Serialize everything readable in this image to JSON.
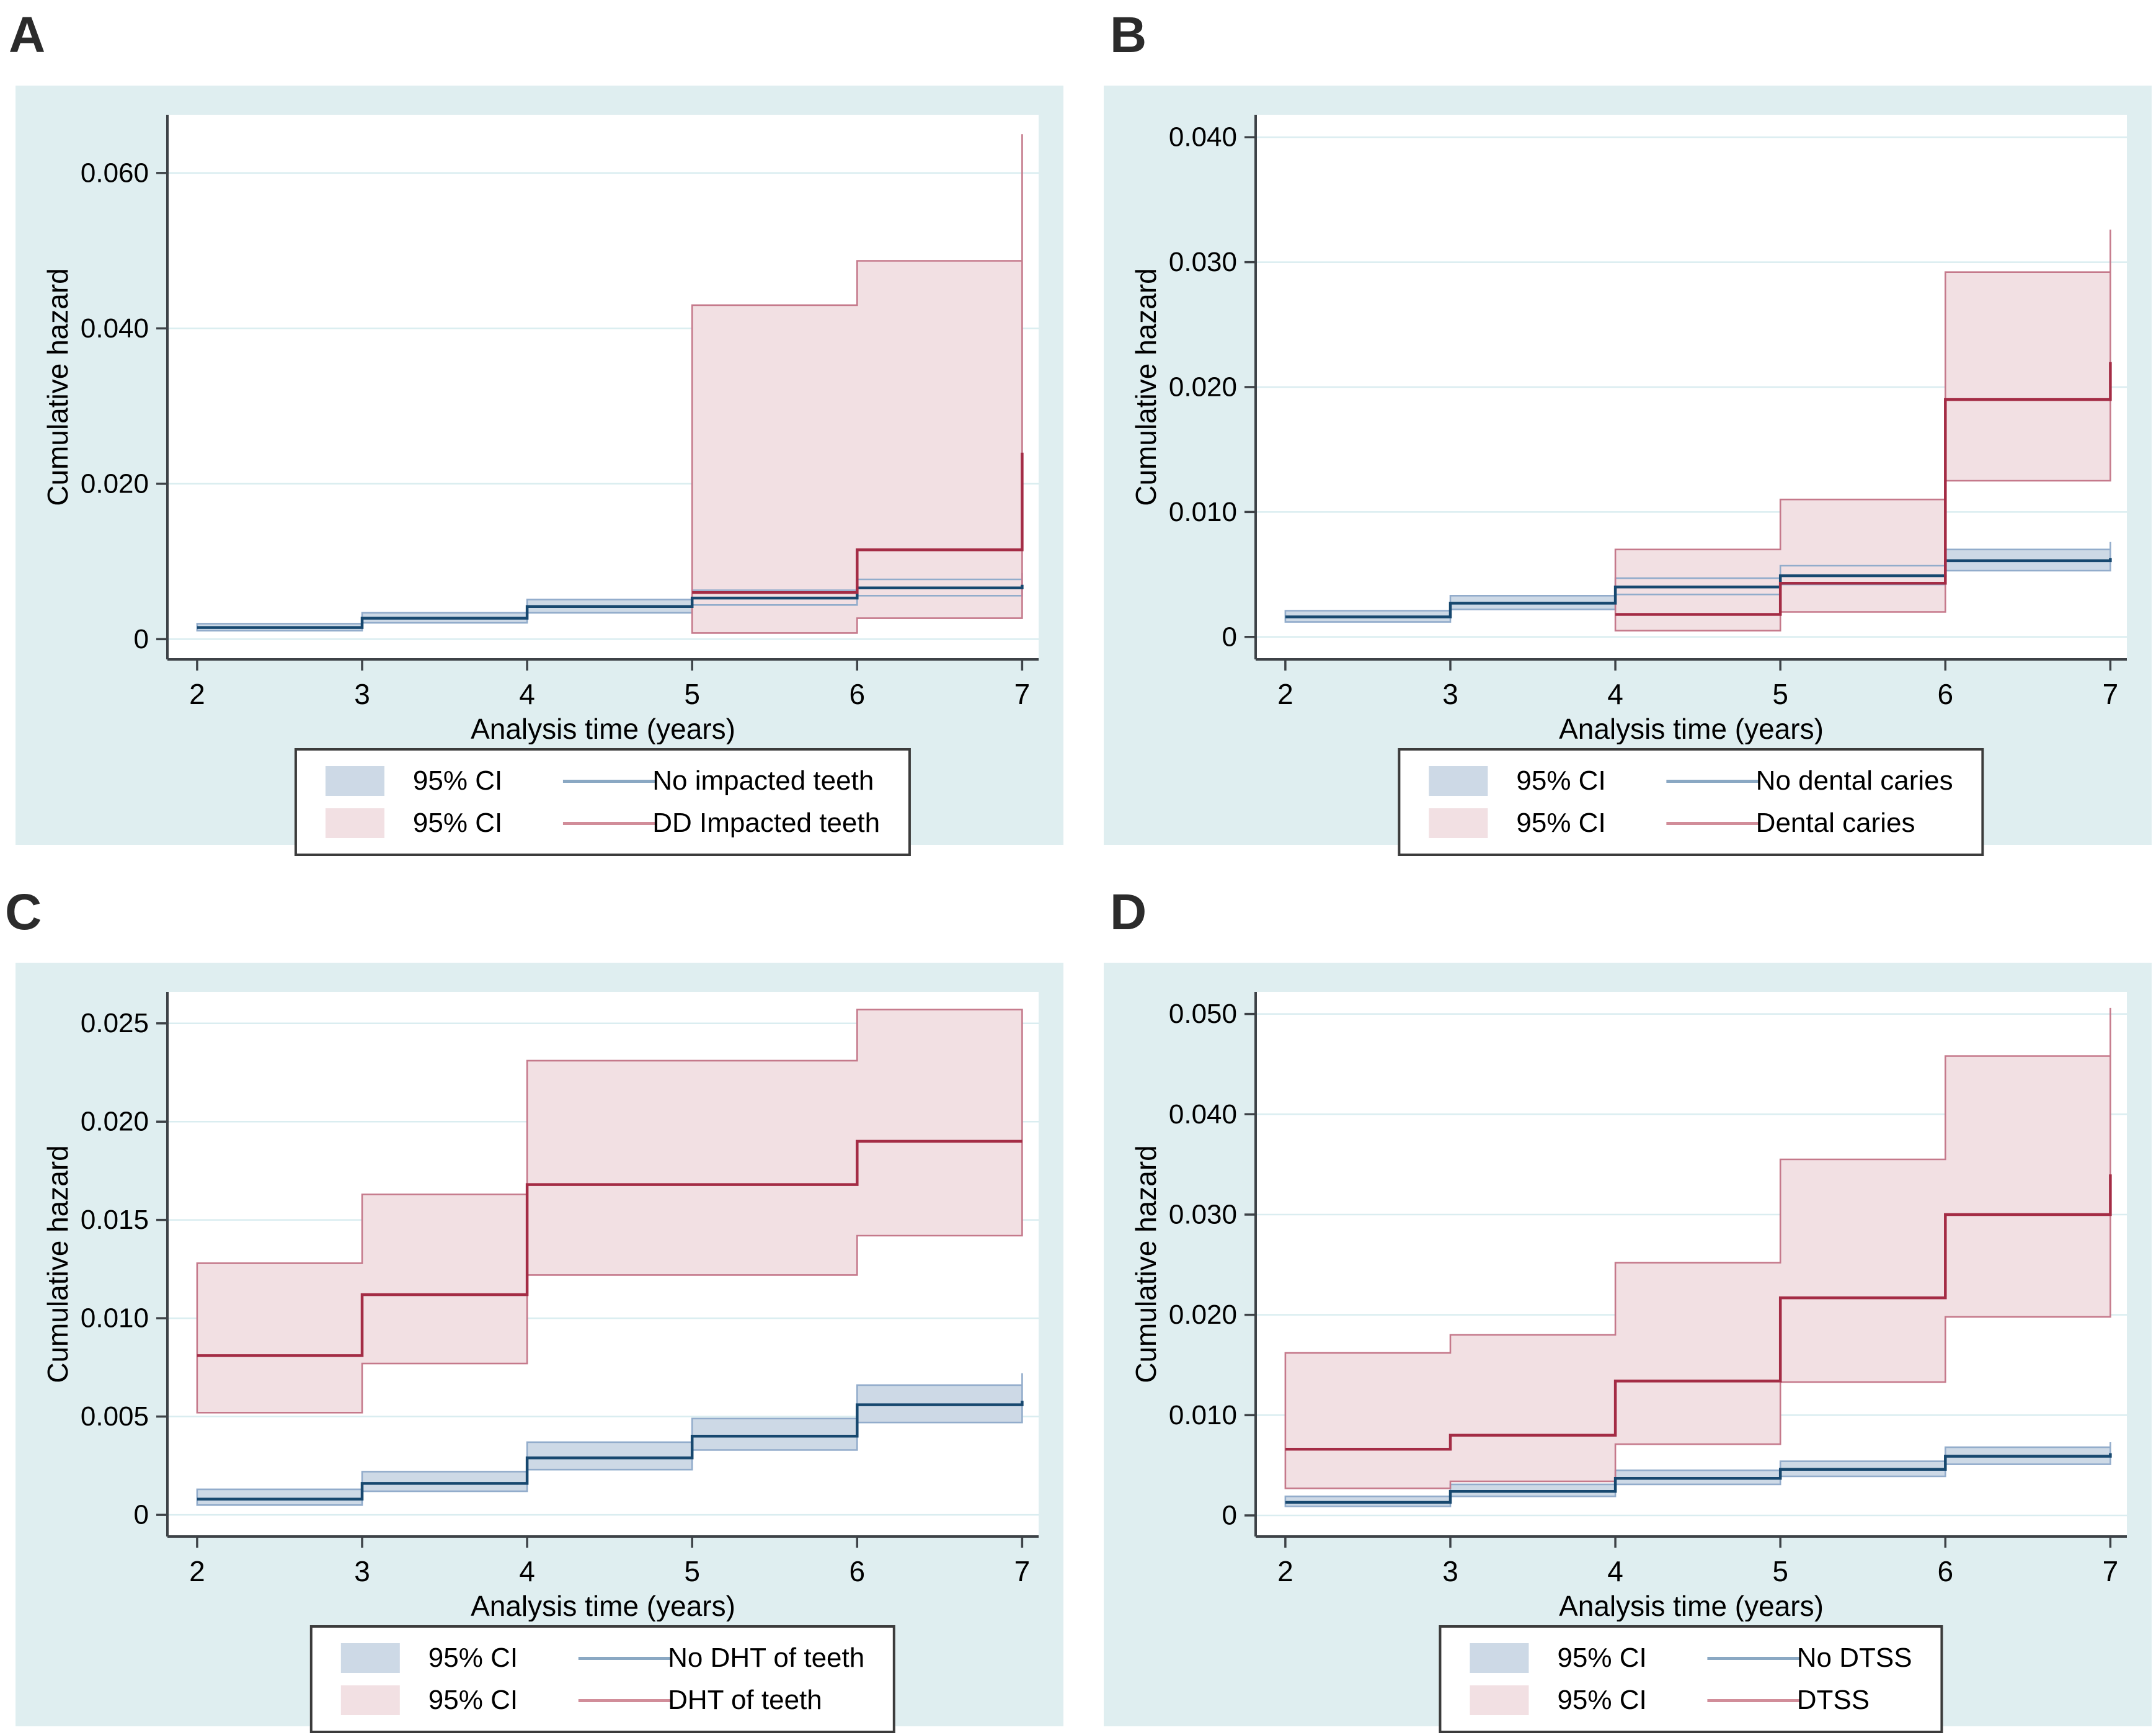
{
  "figure_title": "",
  "colors": {
    "page_bg": "#ffffff",
    "panel_bg": "#dfeef0",
    "plot_bg": "#ffffff",
    "grid": "#daedf0",
    "axis": "#3d4247",
    "text": "#000000",
    "control_line": "#17486f",
    "control_band_fill": "#cdd9e6",
    "control_band_edge": "#92accb",
    "exposed_line": "#a42c45",
    "exposed_band_fill": "#f2e0e3",
    "exposed_band_edge": "#c5798b",
    "legend_line_control": "#8aa8c3",
    "legend_line_exposed": "#d18d99",
    "legend_border": "#3b3b3b"
  },
  "chart_data": [
    {
      "type": "step-line-with-ci",
      "label": "A",
      "xlabel": "Analysis time (years)",
      "ylabel": "Cumulative hazard",
      "xlim": [
        1.82,
        7.1
      ],
      "x_ticks": [
        2,
        3,
        4,
        5,
        6,
        7
      ],
      "ylim": [
        -0.0026,
        0.0675
      ],
      "y_ticks": [
        {
          "v": 0,
          "label": "0"
        },
        {
          "v": 0.02,
          "label": "0.020"
        },
        {
          "v": 0.04,
          "label": "0.040"
        },
        {
          "v": 0.06,
          "label": "0.060"
        }
      ],
      "grid": "horizontal",
      "legend_position": "below",
      "series": [
        {
          "name": "No impacted teeth",
          "ci_name": "95% CI",
          "role": "control",
          "x": [
            2,
            3,
            4,
            5,
            6,
            7
          ],
          "y": [
            0.0015,
            0.0027,
            0.0042,
            0.0053,
            0.0066,
            0.007
          ],
          "ci_low": [
            0.0011,
            0.0021,
            0.0034,
            0.0044,
            0.0056,
            0.0058
          ],
          "ci_high": [
            0.002,
            0.0034,
            0.0051,
            0.0063,
            0.0077,
            0.0085
          ]
        },
        {
          "name": "DD Impacted teeth",
          "ci_name": "95% CI",
          "role": "exposed",
          "x": [
            5,
            6,
            7
          ],
          "y": [
            0.006,
            0.0115,
            0.024
          ],
          "ci_low": [
            0.0008,
            0.0027,
            0.008
          ],
          "ci_high": [
            0.043,
            0.0487,
            0.065
          ]
        }
      ]
    },
    {
      "type": "step-line-with-ci",
      "label": "B",
      "xlabel": "Analysis time (years)",
      "ylabel": "Cumulative hazard",
      "xlim": [
        1.82,
        7.1
      ],
      "x_ticks": [
        2,
        3,
        4,
        5,
        6,
        7
      ],
      "ylim": [
        -0.0018,
        0.0418
      ],
      "y_ticks": [
        {
          "v": 0,
          "label": "0"
        },
        {
          "v": 0.01,
          "label": "0.010"
        },
        {
          "v": 0.02,
          "label": "0.020"
        },
        {
          "v": 0.03,
          "label": "0.030"
        },
        {
          "v": 0.04,
          "label": "0.040"
        }
      ],
      "grid": "horizontal",
      "legend_position": "below",
      "series": [
        {
          "name": "No dental caries",
          "ci_name": "95% CI",
          "role": "control",
          "x": [
            2,
            3,
            4,
            5,
            6,
            7
          ],
          "y": [
            0.0016,
            0.0027,
            0.004,
            0.0049,
            0.0061,
            0.0063
          ],
          "ci_low": [
            0.0012,
            0.0022,
            0.0034,
            0.0042,
            0.0053,
            0.0055
          ],
          "ci_high": [
            0.0021,
            0.0033,
            0.0047,
            0.0057,
            0.007,
            0.0076
          ]
        },
        {
          "name": "Dental caries",
          "ci_name": "95% CI",
          "role": "exposed",
          "x": [
            4,
            5,
            6,
            7
          ],
          "y": [
            0.0018,
            0.0043,
            0.019,
            0.022
          ],
          "ci_low": [
            0.0005,
            0.002,
            0.0125,
            0.0145
          ],
          "ci_high": [
            0.007,
            0.011,
            0.0292,
            0.0326
          ]
        }
      ]
    },
    {
      "type": "step-line-with-ci",
      "label": "C",
      "xlabel": "Analysis time (years)",
      "ylabel": "Cumulative hazard",
      "xlim": [
        1.82,
        7.1
      ],
      "x_ticks": [
        2,
        3,
        4,
        5,
        6,
        7
      ],
      "ylim": [
        -0.0011,
        0.0266
      ],
      "y_ticks": [
        {
          "v": 0,
          "label": "0"
        },
        {
          "v": 0.005,
          "label": "0.005"
        },
        {
          "v": 0.01,
          "label": "0.010"
        },
        {
          "v": 0.015,
          "label": "0.015"
        },
        {
          "v": 0.02,
          "label": "0.020"
        },
        {
          "v": 0.025,
          "label": "0.025"
        }
      ],
      "grid": "horizontal",
      "legend_position": "below",
      "series": [
        {
          "name": "No DHT of teeth",
          "ci_name": "95% CI",
          "role": "control",
          "x": [
            2,
            3,
            4,
            5,
            6,
            7
          ],
          "y": [
            0.0008,
            0.0016,
            0.0029,
            0.004,
            0.0056,
            0.0058
          ],
          "ci_low": [
            0.0005,
            0.0012,
            0.0023,
            0.0033,
            0.0047,
            0.0048
          ],
          "ci_high": [
            0.0013,
            0.0022,
            0.0037,
            0.0049,
            0.0066,
            0.0072
          ]
        },
        {
          "name": "DHT of teeth",
          "ci_name": "95% CI",
          "role": "exposed",
          "x": [
            2,
            3,
            4,
            6
          ],
          "y": [
            0.0081,
            0.0112,
            0.0168,
            0.019
          ],
          "ci_low": [
            0.0052,
            0.0077,
            0.0122,
            0.0142
          ],
          "ci_high": [
            0.0128,
            0.0163,
            0.0231,
            0.0257
          ]
        }
      ]
    },
    {
      "type": "step-line-with-ci",
      "label": "D",
      "xlabel": "Analysis time (years)",
      "ylabel": "Cumulative hazard",
      "xlim": [
        1.82,
        7.1
      ],
      "x_ticks": [
        2,
        3,
        4,
        5,
        6,
        7
      ],
      "ylim": [
        -0.0021,
        0.0522
      ],
      "y_ticks": [
        {
          "v": 0,
          "label": "0"
        },
        {
          "v": 0.01,
          "label": "0.010"
        },
        {
          "v": 0.02,
          "label": "0.020"
        },
        {
          "v": 0.03,
          "label": "0.030"
        },
        {
          "v": 0.04,
          "label": "0.040"
        },
        {
          "v": 0.05,
          "label": "0.050"
        }
      ],
      "grid": "horizontal",
      "legend_position": "below",
      "series": [
        {
          "name": "No DTSS",
          "ci_name": "95% CI",
          "role": "control",
          "x": [
            2,
            3,
            4,
            5,
            6,
            7
          ],
          "y": [
            0.0013,
            0.0024,
            0.0037,
            0.0046,
            0.0059,
            0.0062
          ],
          "ci_low": [
            0.0009,
            0.0019,
            0.0031,
            0.0039,
            0.0051,
            0.0053
          ],
          "ci_high": [
            0.0019,
            0.0031,
            0.0045,
            0.0054,
            0.0068,
            0.0073
          ]
        },
        {
          "name": "DTSS",
          "ci_name": "95% CI",
          "role": "exposed",
          "x": [
            2,
            3,
            4,
            5,
            6,
            7
          ],
          "y": [
            0.0066,
            0.008,
            0.0134,
            0.0217,
            0.03,
            0.034
          ],
          "ci_low": [
            0.0027,
            0.0034,
            0.0071,
            0.0133,
            0.0198,
            0.023
          ],
          "ci_high": [
            0.0162,
            0.018,
            0.0252,
            0.0355,
            0.0458,
            0.0506
          ]
        }
      ]
    }
  ]
}
